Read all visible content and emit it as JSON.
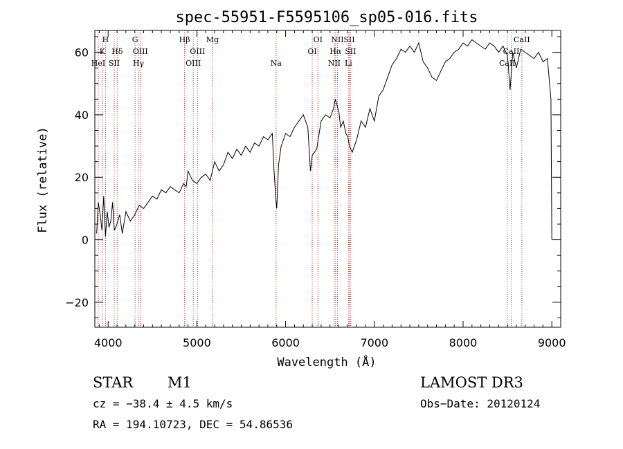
{
  "chart_data": {
    "type": "line",
    "title": "spec-55951-F5595106_sp05-016.fits",
    "xlabel": "Wavelength (Å)",
    "ylabel": "Flux (relative)",
    "xlim": [
      3850,
      9100
    ],
    "ylim": [
      -28,
      67
    ],
    "xticks": [
      4000,
      5000,
      6000,
      7000,
      8000,
      9000
    ],
    "yticks": [
      -20,
      0,
      20,
      40,
      60
    ],
    "series": [
      {
        "name": "flux",
        "x": [
          3870,
          3890,
          3910,
          3930,
          3950,
          3970,
          3990,
          4010,
          4030,
          4050,
          4070,
          4100,
          4130,
          4160,
          4200,
          4250,
          4300,
          4350,
          4400,
          4450,
          4500,
          4550,
          4600,
          4650,
          4700,
          4750,
          4800,
          4850,
          4880,
          4900,
          4950,
          5000,
          5050,
          5100,
          5150,
          5200,
          5250,
          5300,
          5350,
          5400,
          5450,
          5500,
          5550,
          5600,
          5650,
          5700,
          5750,
          5800,
          5850,
          5870,
          5890,
          5900,
          5920,
          5950,
          6000,
          6050,
          6100,
          6150,
          6200,
          6250,
          6280,
          6300,
          6350,
          6400,
          6450,
          6500,
          6540,
          6560,
          6580,
          6600,
          6620,
          6650,
          6680,
          6700,
          6720,
          6750,
          6800,
          6850,
          6900,
          6950,
          7000,
          7050,
          7100,
          7150,
          7200,
          7250,
          7300,
          7350,
          7400,
          7450,
          7500,
          7550,
          7600,
          7650,
          7700,
          7750,
          7800,
          7850,
          7900,
          7950,
          8000,
          8050,
          8100,
          8150,
          8200,
          8250,
          8300,
          8350,
          8400,
          8450,
          8500,
          8530,
          8560,
          8600,
          8650,
          8700,
          8750,
          8800,
          8850,
          8900,
          8950,
          8990,
          9000
        ],
        "values": [
          2,
          12,
          8,
          3,
          14,
          1,
          9,
          4,
          6,
          12,
          3,
          5,
          8,
          2,
          9,
          6,
          8,
          11,
          10,
          12,
          14,
          13,
          16,
          15,
          17,
          16,
          15,
          18,
          17,
          22,
          19,
          18,
          20,
          21,
          19,
          25,
          22,
          24,
          28,
          26,
          29,
          27,
          30,
          28,
          31,
          30,
          33,
          32,
          34,
          22,
          13,
          10,
          24,
          30,
          34,
          33,
          36,
          38,
          40,
          36,
          22,
          27,
          29,
          38,
          40,
          39,
          42,
          45,
          43,
          41,
          36,
          38,
          34,
          33,
          30,
          28,
          32,
          38,
          36,
          42,
          38,
          46,
          48,
          52,
          56,
          58,
          61,
          60,
          62,
          60,
          63,
          57,
          55,
          52,
          51,
          54,
          57,
          58,
          60,
          61,
          63,
          62,
          64,
          63,
          62,
          61,
          63,
          62,
          60,
          62,
          59,
          48,
          60,
          55,
          61,
          60,
          59,
          58,
          60,
          57,
          58,
          45,
          0
        ]
      }
    ],
    "spectral_lines": [
      {
        "label": "H",
        "wavelength": 3970,
        "row": 0
      },
      {
        "label": "K",
        "wavelength": 3934,
        "row": 1
      },
      {
        "label": "HeI",
        "wavelength": 3889,
        "row": 2
      },
      {
        "label": "SII",
        "wavelength": 4068,
        "row": 2
      },
      {
        "label": "Hδ",
        "wavelength": 4102,
        "row": 1
      },
      {
        "label": "G",
        "wavelength": 4304,
        "row": 0
      },
      {
        "label": "OIII",
        "wavelength": 4363,
        "row": 1
      },
      {
        "label": "Hγ",
        "wavelength": 4341,
        "row": 2
      },
      {
        "label": "Hβ",
        "wavelength": 4861,
        "row": 0
      },
      {
        "label": "OIII",
        "wavelength": 5007,
        "row": 1
      },
      {
        "label": "OIII",
        "wavelength": 4959,
        "row": 2
      },
      {
        "label": "Mg",
        "wavelength": 5175,
        "row": 0
      },
      {
        "label": "Na",
        "wavelength": 5893,
        "row": 2
      },
      {
        "label": "OI",
        "wavelength": 6364,
        "row": 0
      },
      {
        "label": "OI",
        "wavelength": 6300,
        "row": 1
      },
      {
        "label": "NII",
        "wavelength": 6584,
        "row": 0
      },
      {
        "label": "SII",
        "wavelength": 6717,
        "row": 0
      },
      {
        "label": "Hα",
        "wavelength": 6563,
        "row": 1
      },
      {
        "label": "SII",
        "wavelength": 6731,
        "row": 1
      },
      {
        "label": "NII",
        "wavelength": 6548,
        "row": 2
      },
      {
        "label": "Li",
        "wavelength": 6708,
        "row": 2
      },
      {
        "label": "CaII",
        "wavelength": 8662,
        "row": 0
      },
      {
        "label": "CaII",
        "wavelength": 8542,
        "row": 1
      },
      {
        "label": "CaII",
        "wavelength": 8498,
        "row": 2
      }
    ]
  },
  "info": {
    "object_class": "STAR",
    "subclass": "M1",
    "survey": "LAMOST DR3",
    "cz": "cz = −38.4 ± 4.5 km/s",
    "obs_date": "Obs−Date: 20120124",
    "coords": "RA = 194.10723, DEC =  54.86536"
  },
  "colors": {
    "line_marker": "#b22222",
    "spectrum": "#000000"
  }
}
